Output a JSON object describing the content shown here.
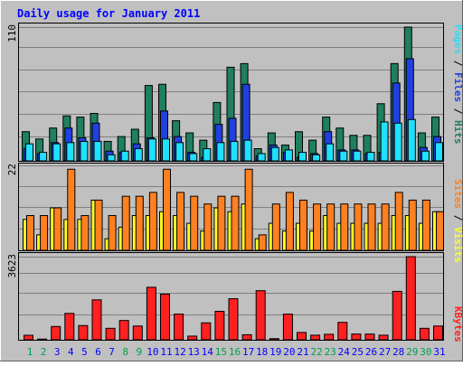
{
  "chart_data": {
    "type": "bar",
    "title": "Daily usage for January 2011",
    "days": [
      "1",
      "2",
      "3",
      "4",
      "5",
      "6",
      "7",
      "8",
      "9",
      "10",
      "11",
      "12",
      "13",
      "14",
      "15",
      "16",
      "17",
      "18",
      "19",
      "20",
      "21",
      "22",
      "23",
      "24",
      "25",
      "26",
      "27",
      "28",
      "29",
      "30",
      "31"
    ],
    "weekend_days": [
      "1",
      "2",
      "8",
      "9",
      "15",
      "16",
      "22",
      "23",
      "29",
      "30"
    ],
    "panels": [
      {
        "id": "hits",
        "max_label": "110",
        "ymax": 110,
        "series": [
          {
            "name": "Hits",
            "color": "#1f7f5f",
            "values": [
              24,
              18,
              27,
              37,
              36,
              39,
              16,
              20,
              26,
              62,
              63,
              33,
              23,
              17,
              48,
              77,
              80,
              10,
              23,
              13,
              24,
              17,
              36,
              27,
              21,
              21,
              47,
              80,
              110,
              23,
              36
            ]
          },
          {
            "name": "Files",
            "color": "#2040e0",
            "values": [
              10,
              6,
              15,
              27,
              19,
              31,
              8,
              7,
              14,
              19,
              41,
              20,
              7,
              3,
              30,
              35,
              63,
              4,
              13,
              7,
              3,
              6,
              24,
              9,
              9,
              6,
              7,
              64,
              84,
              11,
              20
            ]
          },
          {
            "name": "Pages",
            "color": "#20e0ff",
            "values": [
              14,
              7,
              14,
              15,
              16,
              16,
              5,
              8,
              10,
              18,
              18,
              15,
              6,
              10,
              15,
              16,
              17,
              6,
              11,
              9,
              7,
              5,
              14,
              8,
              8,
              7,
              32,
              31,
              34,
              8,
              15
            ]
          }
        ]
      },
      {
        "id": "visits",
        "max_label": "22",
        "ymax": 22,
        "series": [
          {
            "name": "Visits",
            "color": "#ffff20",
            "values": [
              8,
              4,
              11,
              8,
              8,
              13,
              3,
              6,
              9,
              9,
              10,
              9,
              7,
              5,
              11,
              10,
              12,
              3,
              7,
              5,
              7,
              5,
              9,
              7,
              7,
              7,
              7,
              9,
              9,
              7,
              10
            ]
          },
          {
            "name": "Sites",
            "color": "#ff8020",
            "values": [
              9,
              9,
              11,
              21,
              9,
              13,
              9,
              14,
              14,
              15,
              21,
              15,
              14,
              12,
              14,
              14,
              21,
              4,
              12,
              15,
              13,
              12,
              12,
              12,
              12,
              12,
              12,
              15,
              13,
              13,
              10
            ]
          }
        ]
      },
      {
        "id": "kbytes",
        "max_label": "3623",
        "ymax": 3623,
        "series": [
          {
            "name": "KBytes",
            "color": "#ff2020",
            "values": [
              197,
              30,
              580,
              1150,
              620,
              1740,
              500,
              840,
              600,
              2290,
              1990,
              1120,
              160,
              740,
              1240,
              1790,
              220,
              2140,
              50,
              1120,
              320,
              200,
              240,
              760,
              250,
              250,
              200,
              2110,
              3623,
              500,
              600
            ]
          }
        ]
      }
    ],
    "legend_labels": {
      "hits_panel": [
        "Pages",
        " / ",
        "Files",
        " / ",
        "Hits"
      ],
      "visits_panel": [
        "Sites",
        " / ",
        "Visits"
      ],
      "kbytes_panel": [
        "KBytes"
      ]
    }
  },
  "colors": {
    "background": "#c0c0c0",
    "title": "#0000ff",
    "weekday_label": "#0000ff",
    "weekend_label": "#00a050",
    "grid": "#808080",
    "separator": "#000000"
  }
}
